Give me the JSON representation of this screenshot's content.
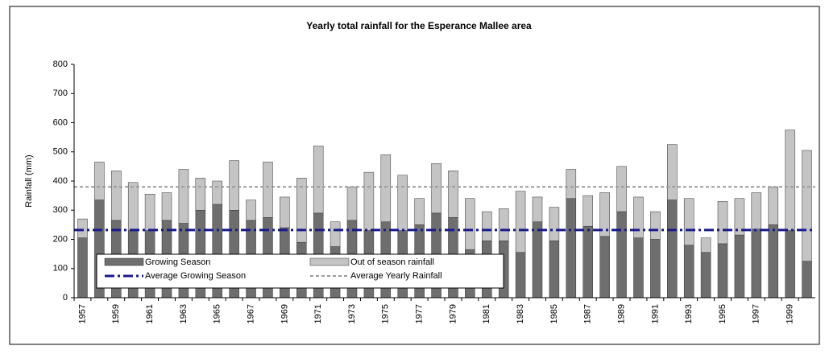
{
  "chart_data": {
    "type": "stacked_bar",
    "title": "Yearly total rainfall for the Esperance Mallee area",
    "y_label": "Rainfall (mm)",
    "categories": [
      "1957",
      null,
      "1959",
      null,
      "1961",
      null,
      "1963",
      null,
      "1965",
      null,
      "1967",
      null,
      "1969",
      null,
      "1971",
      null,
      "1973",
      null,
      "1975",
      null,
      "1977",
      null,
      "1979",
      null,
      "1981",
      null,
      "1983",
      null,
      "1985",
      null,
      "1987",
      null,
      "1989",
      null,
      "1991",
      null,
      "1993",
      null,
      "1995",
      null,
      "1997",
      null,
      "1999",
      null
    ],
    "series": [
      {
        "name": "Growing Season",
        "color": "#6e6e6e",
        "values": [
          205,
          335,
          265,
          230,
          230,
          265,
          255,
          300,
          320,
          300,
          265,
          275,
          240,
          190,
          290,
          175,
          265,
          230,
          260,
          230,
          250,
          290,
          275,
          165,
          195,
          195,
          155,
          260,
          195,
          340,
          245,
          210,
          295,
          205,
          200,
          335,
          180,
          155,
          185,
          215,
          235,
          250,
          230,
          125
        ]
      },
      {
        "name": "Out of season rainfall",
        "color": "#c4c4c4",
        "values": [
          65,
          130,
          170,
          165,
          125,
          95,
          185,
          110,
          80,
          170,
          70,
          190,
          105,
          220,
          230,
          85,
          115,
          200,
          230,
          190,
          90,
          170,
          160,
          175,
          100,
          110,
          210,
          85,
          115,
          100,
          105,
          150,
          155,
          140,
          95,
          190,
          160,
          50,
          145,
          125,
          125,
          130,
          345,
          380
        ]
      }
    ],
    "lines": [
      {
        "name": "Average Growing Season",
        "color": "#1a1a8c",
        "value": 232
      },
      {
        "name": "Average Yearly Rainfall",
        "color": "#9a9a9a",
        "value": 380
      }
    ],
    "ylim": [
      0,
      800
    ],
    "yticks": [
      0,
      100,
      200,
      300,
      400,
      500,
      600,
      700,
      800
    ]
  }
}
